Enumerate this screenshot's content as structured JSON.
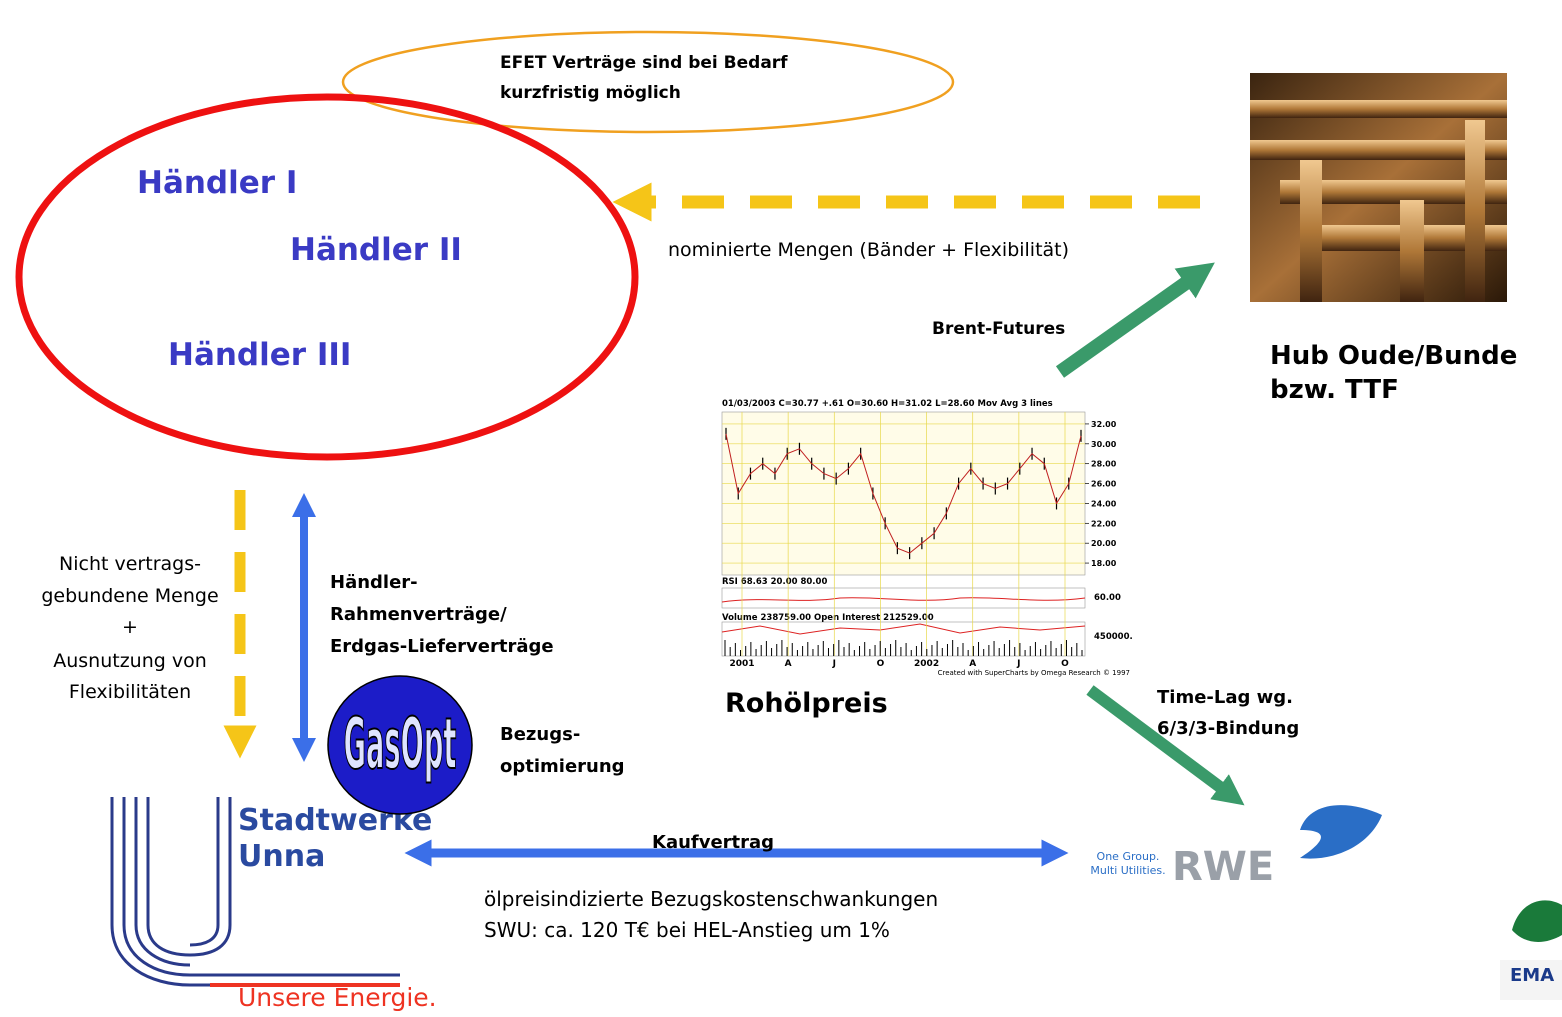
{
  "efet_note": {
    "lines": [
      "EFET Verträge sind bei Bedarf",
      "kurzfristig möglich"
    ]
  },
  "traders": [
    "Händler I",
    "Händler II",
    "Händler III"
  ],
  "nomination_label": "nominierte Mengen (Bänder + Flexibilität)",
  "hub": {
    "lines": [
      "Hub Oude/Bunde",
      "bzw. TTF"
    ]
  },
  "brent_label": "Brent-Futures",
  "non_contract_note": {
    "lines": [
      "Nicht vertrags-",
      "gebundene Menge",
      "+",
      "Ausnutzung von",
      "Flexibilitäten"
    ]
  },
  "framework_contracts": {
    "lines": [
      "Händler-",
      "Rahmenverträge/",
      "Erdgas-Lieferverträge"
    ]
  },
  "gasopt": {
    "logo": "GasOpt",
    "lines": [
      "Bezugs-",
      "optimierung"
    ]
  },
  "oil_chart": {
    "header": "01/03/2003  C=30.77  +.61  O=30.60  H=31.02  L=28.60  Mov Avg 3 lines",
    "ylim": [
      16.8,
      33.2
    ],
    "yticks": [
      {
        "value": 32,
        "label": "32.00"
      },
      {
        "value": 30,
        "label": "30.00"
      },
      {
        "value": 28,
        "label": "28.00"
      },
      {
        "value": 26,
        "label": "26.00"
      },
      {
        "value": 24,
        "label": "24.00"
      },
      {
        "value": 22,
        "label": "22.00"
      },
      {
        "value": 20,
        "label": "20.00"
      },
      {
        "value": 18,
        "label": "18.00"
      }
    ],
    "values": [
      31,
      25,
      27,
      28,
      27,
      29,
      29.5,
      28,
      27,
      26.5,
      27.5,
      29,
      25,
      22,
      19.5,
      19,
      20,
      21,
      23,
      26,
      27.5,
      26,
      25.5,
      26,
      27.5,
      29,
      28,
      24,
      26,
      30.8
    ],
    "rsi_label": "RSI  68.63  20.00  80.00",
    "rsi_tick": "60.00",
    "volume_label": "Volume  238759.00  Open Interest  212529.00",
    "volume_tick": "450000.",
    "x_labels": [
      "2001",
      "A",
      "J",
      "O",
      "2002",
      "A",
      "J",
      "O"
    ],
    "credit": "Created with SuperCharts by Omega Research © 1997"
  },
  "oil_label": "Rohölpreis",
  "time_lag": {
    "lines": [
      "Time-Lag wg.",
      "6/3/3-Bindung"
    ]
  },
  "purchase_contract": "Kaufvertrag",
  "cost_note": {
    "lines": [
      "ölpreisindizierte Bezugskostenschwankungen",
      "SWU: ca. 120 T€ bei HEL-Anstieg um 1%"
    ]
  },
  "swu_logo": {
    "lines": [
      "Stadtwerke",
      "Unna"
    ],
    "slogan": "Unsere Energie."
  },
  "rwe_logo": {
    "tagline": [
      "One Group.",
      "Multi Utilities."
    ],
    "name": "RWE"
  },
  "emas_logo": {
    "name": "EMA"
  }
}
